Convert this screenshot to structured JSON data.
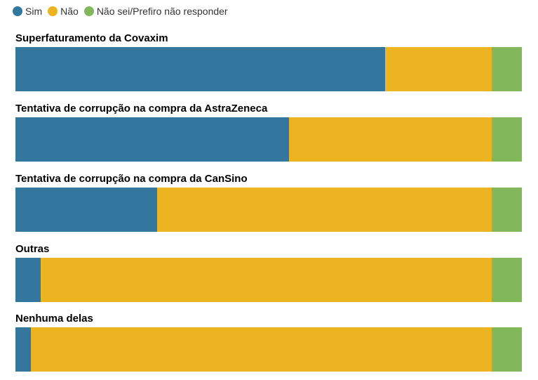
{
  "colors": {
    "sim": "#33779f",
    "nao": "#edb421",
    "ns": "#81b85b"
  },
  "legend": [
    {
      "label": "Sim",
      "color": "#33779f"
    },
    {
      "label": "Não",
      "color": "#edb421"
    },
    {
      "label": "Não sei/Prefiro não responder",
      "color": "#81b85b"
    }
  ],
  "chart_data": {
    "type": "bar",
    "orientation": "horizontal",
    "stacked": true,
    "normalized": true,
    "title": "",
    "categories": [
      "Superfaturamento da Covaxim",
      "Tentativa de corrupção na compra da AstraZeneca",
      "Tentativa de corrupção na compra da CanSino",
      "Outras",
      "Nenhuma delas"
    ],
    "series": [
      {
        "name": "Sim",
        "values": [
          73,
          54,
          28,
          5,
          3
        ]
      },
      {
        "name": "Não",
        "values": [
          21,
          40,
          66,
          89,
          91
        ]
      },
      {
        "name": "Não sei/Prefiro não responder",
        "values": [
          6,
          6,
          6,
          6,
          6
        ]
      }
    ],
    "xlim": [
      0,
      100
    ],
    "grid": false,
    "legend_position": "top-left",
    "unit": "%"
  }
}
